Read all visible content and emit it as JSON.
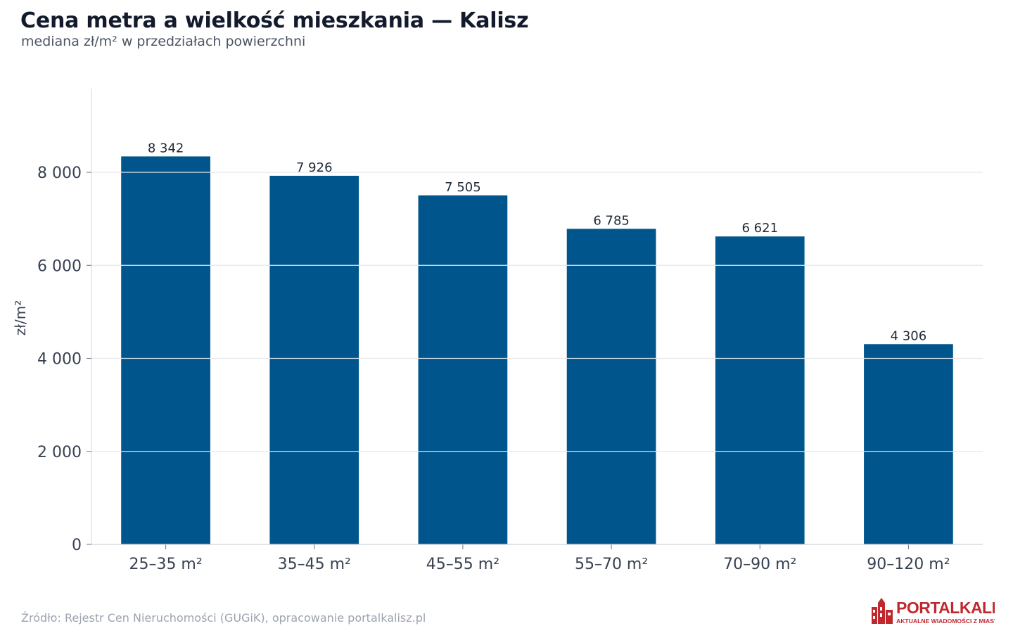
{
  "title": "Cena metra a wielkość mieszkania — Kalisz",
  "subtitle": "mediana zł/m² w przedziałach powierzchni",
  "source": "Źródło: Rejestr Cen Nieruchomości (GUGiK), opracowanie portalkalisz.pl",
  "logo": {
    "name": "PORTALKALISZ",
    "tagline": "AKTUALNE WIADOMOŚCI Z MIASTA"
  },
  "colors": {
    "bar": "#00558c",
    "grid": "#e5e7eb",
    "axis": "#d1d5db",
    "logo": "#c0282d"
  },
  "chart_data": {
    "type": "bar",
    "title": "Cena metra a wielkość mieszkania — Kalisz",
    "subtitle": "mediana zł/m² w przedziałach powierzchni",
    "xlabel": "",
    "ylabel": "zł/m²",
    "categories": [
      "25–35 m²",
      "35–45 m²",
      "45–55 m²",
      "55–70 m²",
      "70–90 m²",
      "90–120 m²"
    ],
    "values": [
      8342,
      7926,
      7505,
      6785,
      6621,
      4306
    ],
    "value_labels": [
      "8 342",
      "7 926",
      "7 505",
      "6 785",
      "6 621",
      "4 306"
    ],
    "ylim": [
      0,
      9800
    ],
    "yticks": [
      0,
      2000,
      4000,
      6000,
      8000
    ],
    "ytick_labels": [
      "0",
      "2 000",
      "4 000",
      "6 000",
      "8 000"
    ],
    "grid": true,
    "legend": "none"
  }
}
